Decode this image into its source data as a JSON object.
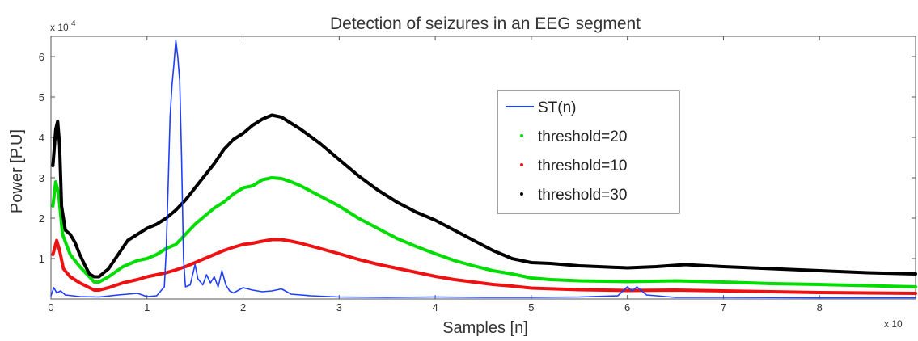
{
  "chart_data": {
    "type": "line",
    "title": "Detection of seizures in an EEG segment",
    "xlabel": "Samples [n]",
    "ylabel": "Power [P.U]",
    "x_multiplier": "x 10",
    "y_multiplier": "x 10",
    "y_multiplier_exp": "4",
    "xlim": [
      0,
      9
    ],
    "ylim": [
      0,
      6.5
    ],
    "x_ticks": [
      "0",
      "1",
      "2",
      "3",
      "4",
      "5",
      "6",
      "7",
      "8"
    ],
    "y_ticks": [
      "1",
      "2",
      "3",
      "4",
      "5",
      "6"
    ],
    "grid": false,
    "legend_position": "top-right",
    "series": [
      {
        "name": "ST(n)",
        "color": "#1f3fff",
        "style": "line",
        "points": [
          [
            0,
            0.08
          ],
          [
            0.03,
            0.28
          ],
          [
            0.06,
            0.15
          ],
          [
            0.1,
            0.2
          ],
          [
            0.15,
            0.1
          ],
          [
            0.3,
            0.06
          ],
          [
            0.5,
            0.05
          ],
          [
            0.7,
            0.1
          ],
          [
            0.9,
            0.14
          ],
          [
            1.0,
            0.06
          ],
          [
            1.1,
            0.08
          ],
          [
            1.18,
            0.3
          ],
          [
            1.2,
            1.2
          ],
          [
            1.22,
            2.8
          ],
          [
            1.24,
            4.5
          ],
          [
            1.26,
            5.3
          ],
          [
            1.28,
            5.8
          ],
          [
            1.3,
            6.4
          ],
          [
            1.32,
            6.0
          ],
          [
            1.34,
            5.4
          ],
          [
            1.36,
            3.5
          ],
          [
            1.38,
            1.0
          ],
          [
            1.4,
            0.3
          ],
          [
            1.45,
            0.35
          ],
          [
            1.5,
            0.85
          ],
          [
            1.53,
            0.5
          ],
          [
            1.58,
            0.35
          ],
          [
            1.62,
            0.6
          ],
          [
            1.66,
            0.4
          ],
          [
            1.7,
            0.55
          ],
          [
            1.74,
            0.3
          ],
          [
            1.78,
            0.7
          ],
          [
            1.82,
            0.35
          ],
          [
            1.86,
            0.2
          ],
          [
            1.9,
            0.15
          ],
          [
            2.0,
            0.28
          ],
          [
            2.1,
            0.22
          ],
          [
            2.2,
            0.18
          ],
          [
            2.3,
            0.2
          ],
          [
            2.4,
            0.25
          ],
          [
            2.5,
            0.12
          ],
          [
            2.7,
            0.08
          ],
          [
            3.0,
            0.05
          ],
          [
            3.5,
            0.04
          ],
          [
            4.0,
            0.05
          ],
          [
            4.5,
            0.04
          ],
          [
            5.0,
            0.04
          ],
          [
            5.5,
            0.05
          ],
          [
            5.9,
            0.08
          ],
          [
            6.0,
            0.3
          ],
          [
            6.05,
            0.2
          ],
          [
            6.1,
            0.3
          ],
          [
            6.2,
            0.1
          ],
          [
            6.5,
            0.04
          ],
          [
            7.0,
            0.04
          ],
          [
            8.0,
            0.03
          ],
          [
            9.0,
            0.03
          ]
        ]
      },
      {
        "name": "threshold=20",
        "color": "#00dd00",
        "style": "markers",
        "points": [
          [
            0.02,
            2.3
          ],
          [
            0.05,
            2.9
          ],
          [
            0.08,
            2.6
          ],
          [
            0.12,
            1.6
          ],
          [
            0.2,
            1.1
          ],
          [
            0.3,
            0.8
          ],
          [
            0.4,
            0.55
          ],
          [
            0.45,
            0.42
          ],
          [
            0.5,
            0.42
          ],
          [
            0.6,
            0.55
          ],
          [
            0.75,
            0.8
          ],
          [
            0.9,
            0.95
          ],
          [
            1.0,
            1.0
          ],
          [
            1.1,
            1.1
          ],
          [
            1.2,
            1.25
          ],
          [
            1.3,
            1.35
          ],
          [
            1.4,
            1.6
          ],
          [
            1.5,
            1.85
          ],
          [
            1.6,
            2.05
          ],
          [
            1.7,
            2.25
          ],
          [
            1.8,
            2.4
          ],
          [
            1.9,
            2.6
          ],
          [
            2.0,
            2.75
          ],
          [
            2.1,
            2.8
          ],
          [
            2.2,
            2.95
          ],
          [
            2.3,
            3.0
          ],
          [
            2.4,
            2.98
          ],
          [
            2.5,
            2.9
          ],
          [
            2.6,
            2.8
          ],
          [
            2.8,
            2.55
          ],
          [
            3.0,
            2.3
          ],
          [
            3.2,
            2.0
          ],
          [
            3.4,
            1.75
          ],
          [
            3.6,
            1.5
          ],
          [
            3.8,
            1.3
          ],
          [
            4.0,
            1.12
          ],
          [
            4.2,
            0.95
          ],
          [
            4.4,
            0.82
          ],
          [
            4.6,
            0.7
          ],
          [
            4.8,
            0.62
          ],
          [
            5.0,
            0.52
          ],
          [
            5.2,
            0.48
          ],
          [
            5.5,
            0.45
          ],
          [
            6.0,
            0.43
          ],
          [
            6.5,
            0.45
          ],
          [
            7.0,
            0.42
          ],
          [
            7.5,
            0.38
          ],
          [
            8.0,
            0.36
          ],
          [
            8.5,
            0.33
          ],
          [
            9.0,
            0.3
          ]
        ]
      },
      {
        "name": "threshold=10",
        "color": "#ee1111",
        "style": "markers",
        "points": [
          [
            0.02,
            1.1
          ],
          [
            0.06,
            1.45
          ],
          [
            0.09,
            1.2
          ],
          [
            0.13,
            0.75
          ],
          [
            0.2,
            0.55
          ],
          [
            0.3,
            0.4
          ],
          [
            0.4,
            0.28
          ],
          [
            0.45,
            0.22
          ],
          [
            0.5,
            0.22
          ],
          [
            0.6,
            0.28
          ],
          [
            0.75,
            0.4
          ],
          [
            0.9,
            0.48
          ],
          [
            1.0,
            0.55
          ],
          [
            1.1,
            0.6
          ],
          [
            1.2,
            0.65
          ],
          [
            1.3,
            0.72
          ],
          [
            1.4,
            0.8
          ],
          [
            1.5,
            0.9
          ],
          [
            1.6,
            1.0
          ],
          [
            1.7,
            1.1
          ],
          [
            1.8,
            1.2
          ],
          [
            1.9,
            1.28
          ],
          [
            2.0,
            1.35
          ],
          [
            2.1,
            1.38
          ],
          [
            2.2,
            1.43
          ],
          [
            2.3,
            1.47
          ],
          [
            2.4,
            1.47
          ],
          [
            2.5,
            1.43
          ],
          [
            2.6,
            1.38
          ],
          [
            2.8,
            1.25
          ],
          [
            3.0,
            1.12
          ],
          [
            3.2,
            0.98
          ],
          [
            3.4,
            0.86
          ],
          [
            3.6,
            0.76
          ],
          [
            3.8,
            0.66
          ],
          [
            4.0,
            0.56
          ],
          [
            4.2,
            0.48
          ],
          [
            4.4,
            0.42
          ],
          [
            4.6,
            0.36
          ],
          [
            4.8,
            0.32
          ],
          [
            5.0,
            0.27
          ],
          [
            5.5,
            0.23
          ],
          [
            6.0,
            0.21
          ],
          [
            6.5,
            0.22
          ],
          [
            7.0,
            0.2
          ],
          [
            7.5,
            0.18
          ],
          [
            8.0,
            0.16
          ],
          [
            8.5,
            0.15
          ],
          [
            9.0,
            0.14
          ]
        ]
      },
      {
        "name": "threshold=30",
        "color": "#000000",
        "style": "markers",
        "points": [
          [
            0.02,
            3.3
          ],
          [
            0.05,
            4.2
          ],
          [
            0.07,
            4.4
          ],
          [
            0.09,
            3.8
          ],
          [
            0.11,
            2.3
          ],
          [
            0.15,
            1.7
          ],
          [
            0.2,
            1.6
          ],
          [
            0.25,
            1.4
          ],
          [
            0.3,
            1.1
          ],
          [
            0.35,
            0.85
          ],
          [
            0.4,
            0.62
          ],
          [
            0.45,
            0.55
          ],
          [
            0.5,
            0.55
          ],
          [
            0.55,
            0.65
          ],
          [
            0.6,
            0.75
          ],
          [
            0.7,
            1.1
          ],
          [
            0.8,
            1.45
          ],
          [
            0.9,
            1.6
          ],
          [
            1.0,
            1.75
          ],
          [
            1.1,
            1.85
          ],
          [
            1.2,
            2.0
          ],
          [
            1.3,
            2.2
          ],
          [
            1.4,
            2.45
          ],
          [
            1.5,
            2.75
          ],
          [
            1.6,
            3.05
          ],
          [
            1.7,
            3.35
          ],
          [
            1.8,
            3.7
          ],
          [
            1.9,
            3.95
          ],
          [
            2.0,
            4.1
          ],
          [
            2.1,
            4.3
          ],
          [
            2.2,
            4.45
          ],
          [
            2.3,
            4.55
          ],
          [
            2.4,
            4.5
          ],
          [
            2.5,
            4.35
          ],
          [
            2.6,
            4.2
          ],
          [
            2.8,
            3.85
          ],
          [
            3.0,
            3.45
          ],
          [
            3.2,
            3.05
          ],
          [
            3.4,
            2.7
          ],
          [
            3.6,
            2.4
          ],
          [
            3.8,
            2.15
          ],
          [
            4.0,
            1.95
          ],
          [
            4.2,
            1.7
          ],
          [
            4.4,
            1.45
          ],
          [
            4.6,
            1.2
          ],
          [
            4.8,
            1.0
          ],
          [
            5.0,
            0.9
          ],
          [
            5.2,
            0.88
          ],
          [
            5.5,
            0.82
          ],
          [
            6.0,
            0.77
          ],
          [
            6.3,
            0.8
          ],
          [
            6.6,
            0.85
          ],
          [
            7.0,
            0.8
          ],
          [
            7.5,
            0.75
          ],
          [
            8.0,
            0.7
          ],
          [
            8.5,
            0.65
          ],
          [
            9.0,
            0.62
          ]
        ]
      }
    ]
  }
}
